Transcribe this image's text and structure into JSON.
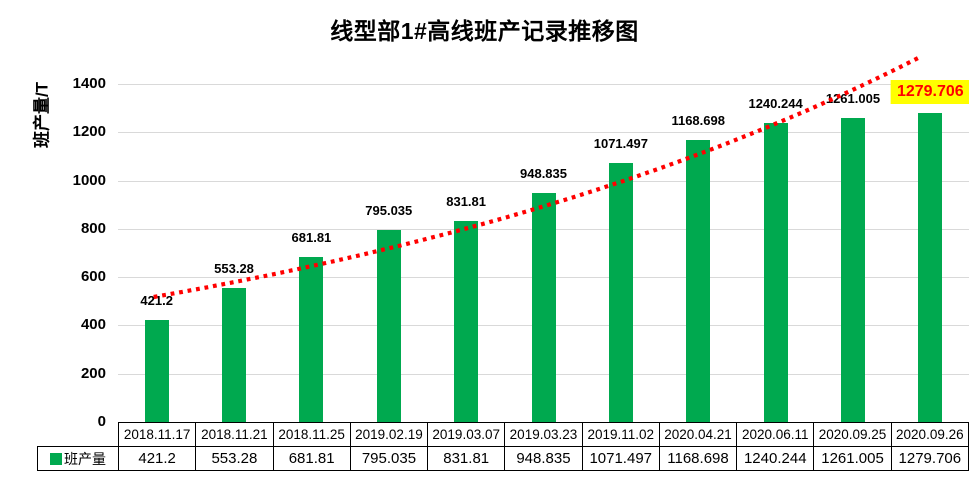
{
  "chart_data": {
    "type": "bar",
    "title": "线型部1#高线班产记录推移图",
    "ylabel": "班产量/T",
    "series_name": "班产量",
    "categories": [
      "2018.11.17",
      "2018.11.21",
      "2018.11.25",
      "2019.02.19",
      "2019.03.07",
      "2019.03.23",
      "2019.11.02",
      "2020.04.21",
      "2020.06.11",
      "2020.09.25",
      "2020.09.26"
    ],
    "values": [
      421.2,
      553.28,
      681.81,
      795.035,
      831.81,
      948.835,
      1071.497,
      1168.698,
      1240.244,
      1261.005,
      1279.706
    ],
    "value_labels": [
      "421.2",
      "553.28",
      "681.81",
      "795.035",
      "831.81",
      "948.835",
      "1071.497",
      "1168.698",
      "1240.244",
      "1261.005",
      "1279.706"
    ],
    "ylim": [
      0,
      1500
    ],
    "yticks": [
      0,
      200,
      400,
      600,
      800,
      1000,
      1200,
      1400
    ],
    "grid": "horizontal",
    "legend_position": "table-left",
    "data_table_shown": true,
    "highlight_last_label": true,
    "colors": {
      "bar": "#00A94F",
      "gridline": "#D9D9D9",
      "trendline": "#FF0000",
      "highlight_bg": "#FFFF00",
      "highlight_text": "#FF0000",
      "text": "#000000"
    },
    "trendline": {
      "type": "exponential",
      "style": "dotted",
      "color": "#FF0000",
      "start_value": 518,
      "end_value": 1508
    }
  }
}
